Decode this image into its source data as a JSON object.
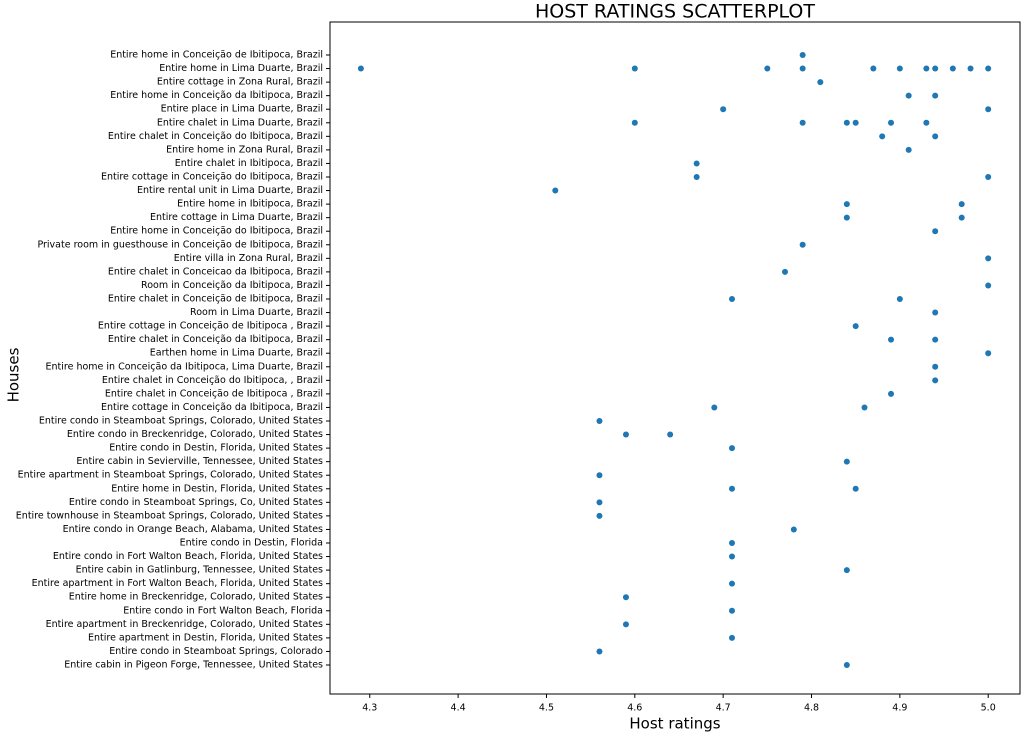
{
  "chart_data": {
    "type": "scatter",
    "title": "HOST RATINGS SCATTERPLOT",
    "x_label": "Host ratings",
    "y_label": "Houses",
    "color": "#1f77b4",
    "categories": [
      "Entire home in Conceição de Ibitipoca, Brazil",
      "Entire home in Lima Duarte, Brazil",
      "Entire cottage in Zona Rural, Brazil",
      "Entire home in Conceição da Ibitipoca, Brazil",
      "Entire place in Lima Duarte, Brazil",
      "Entire chalet in Lima Duarte, Brazil",
      "Entire chalet in Conceição do Ibitipoca, Brazil",
      "Entire home in Zona Rural, Brazil",
      "Entire chalet in Ibitipoca, Brazil",
      "Entire cottage in Conceição do Ibitipoca, Brazil",
      "Entire rental unit in Lima Duarte, Brazil",
      "Entire home in Ibitipoca, Brazil",
      "Entire cottage in Lima Duarte, Brazil",
      "Entire home in Conceição do Ibitipoca, Brazil",
      "Private room in guesthouse in Conceição de Ibitipoca, Brazil",
      "Entire villa in Zona Rural, Brazil",
      "Entire chalet in Conceicao da Ibitipoca, Brazil",
      "Room in Conceição da Ibitipoca, Brazil",
      "Entire chalet in Conceição de Ibitipoca, Brazil",
      "Room in Lima Duarte, Brazil",
      "Entire cottage in Conceição de Ibitipoca , Brazil",
      "Entire chalet in Conceição da Ibitipoca, Brazil",
      "Earthen home in Lima Duarte, Brazil",
      "Entire home in Conceição da Ibitipoca, Lima Duarte, Brazil",
      "Entire chalet in Conceição do Ibitipoca, , Brazil",
      "Entire chalet in Conceição de Ibitipoca , Brazil",
      "Entire cottage in Conceição da Ibitipoca, Brazil",
      "Entire condo in Steamboat Springs, Colorado, United States",
      "Entire condo in Breckenridge, Colorado, United States",
      "Entire condo in Destin, Florida, United States",
      "Entire cabin in Sevierville, Tennessee, United States",
      "Entire apartment in Steamboat Springs, Colorado, United States",
      "Entire home in Destin, Florida, United States",
      "Entire condo in Steamboat Springs, Co, United States",
      "Entire townhouse in Steamboat Springs, Colorado, United States",
      "Entire condo in Orange Beach, Alabama, United States",
      "Entire condo in Destin, Florida",
      "Entire condo in Fort Walton Beach, Florida, United States",
      "Entire cabin in Gatlinburg, Tennessee, United States",
      "Entire apartment in Fort Walton Beach, Florida, United States",
      "Entire home in Breckenridge, Colorado, United States",
      "Entire condo in Fort Walton Beach, Florida",
      "Entire apartment in Breckenridge, Colorado, United States",
      "Entire apartment in Destin, Florida, United States",
      "Entire condo in Steamboat Springs, Colorado",
      "Entire cabin in Pigeon Forge, Tennessee, United States"
    ],
    "ratings": [
      [
        4.79
      ],
      [
        4.29,
        4.6,
        4.75,
        4.79,
        4.87,
        4.9,
        4.93,
        4.94,
        4.96,
        4.98,
        5.0
      ],
      [
        4.81
      ],
      [
        4.91,
        4.94
      ],
      [
        4.7,
        5.0
      ],
      [
        4.6,
        4.79,
        4.84,
        4.85,
        4.89,
        4.93
      ],
      [
        4.88,
        4.94
      ],
      [
        4.91
      ],
      [
        4.67
      ],
      [
        4.67,
        5.0
      ],
      [
        4.51
      ],
      [
        4.84,
        4.97
      ],
      [
        4.84,
        4.97
      ],
      [
        4.94
      ],
      [
        4.79
      ],
      [
        5.0
      ],
      [
        4.77
      ],
      [
        5.0
      ],
      [
        4.71,
        4.9
      ],
      [
        4.94
      ],
      [
        4.85
      ],
      [
        4.89,
        4.94
      ],
      [
        5.0
      ],
      [
        4.94
      ],
      [
        4.94
      ],
      [
        4.89
      ],
      [
        4.69,
        4.86
      ],
      [
        4.56
      ],
      [
        4.59,
        4.64
      ],
      [
        4.71
      ],
      [
        4.84
      ],
      [
        4.56
      ],
      [
        4.71,
        4.85
      ],
      [
        4.56
      ],
      [
        4.56
      ],
      [
        4.78
      ],
      [
        4.71
      ],
      [
        4.71
      ],
      [
        4.84
      ],
      [
        4.71
      ],
      [
        4.59
      ],
      [
        4.71
      ],
      [
        4.59
      ],
      [
        4.71
      ],
      [
        4.56
      ],
      [
        4.84
      ]
    ],
    "xlim": [
      4.255,
      5.036
    ],
    "xticks": [
      4.3,
      4.4,
      4.5,
      4.6,
      4.7,
      4.8,
      4.9,
      {
        "value": 5.0,
        "label": "5.0"
      }
    ]
  }
}
